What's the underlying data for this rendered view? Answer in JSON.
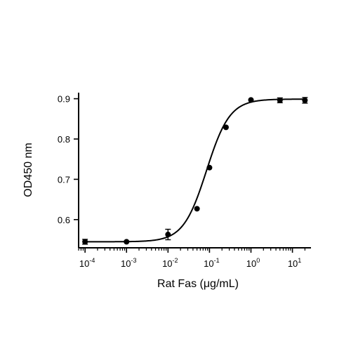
{
  "chart_data": {
    "type": "scatter",
    "title": "",
    "xlabel": "Rat Fas (μg/mL)",
    "ylabel": "OD450 nm",
    "x_scale": "log10",
    "xlim": [
      7e-05,
      28
    ],
    "ylim": [
      0.53,
      0.915
    ],
    "x_ticks": [
      {
        "value": 0.0001,
        "base": "10",
        "exp": "-4"
      },
      {
        "value": 0.001,
        "base": "10",
        "exp": "-3"
      },
      {
        "value": 0.01,
        "base": "10",
        "exp": "-2"
      },
      {
        "value": 0.1,
        "base": "10",
        "exp": "-1"
      },
      {
        "value": 1,
        "base": "10",
        "exp": "0"
      },
      {
        "value": 10,
        "base": "10",
        "exp": "1"
      }
    ],
    "y_ticks": [
      {
        "value": 0.6,
        "label": "0.6"
      },
      {
        "value": 0.7,
        "label": "0.7"
      },
      {
        "value": 0.8,
        "label": "0.8"
      },
      {
        "value": 0.9,
        "label": "0.9"
      }
    ],
    "grid": false,
    "legend": "none",
    "series": [
      {
        "points": [
          {
            "x": 0.0001,
            "y": 0.545,
            "err": 0.006
          },
          {
            "x": 0.001,
            "y": 0.545,
            "err": 0.0
          },
          {
            "x": 0.01,
            "y": 0.563,
            "err": 0.013
          },
          {
            "x": 0.05,
            "y": 0.627,
            "err": 0.0
          },
          {
            "x": 0.1,
            "y": 0.729,
            "err": 0.0
          },
          {
            "x": 0.25,
            "y": 0.829,
            "err": 0.0
          },
          {
            "x": 1,
            "y": 0.897,
            "err": 0.0
          },
          {
            "x": 5,
            "y": 0.896,
            "err": 0.006
          },
          {
            "x": 20,
            "y": 0.896,
            "err": 0.007
          }
        ],
        "fit": {
          "model": "4PL",
          "bottom": 0.545,
          "top": 0.899,
          "ec50": 0.085,
          "hill": 1.55
        }
      }
    ],
    "colors": {
      "marks": "#000000",
      "background": "#ffffff"
    }
  }
}
